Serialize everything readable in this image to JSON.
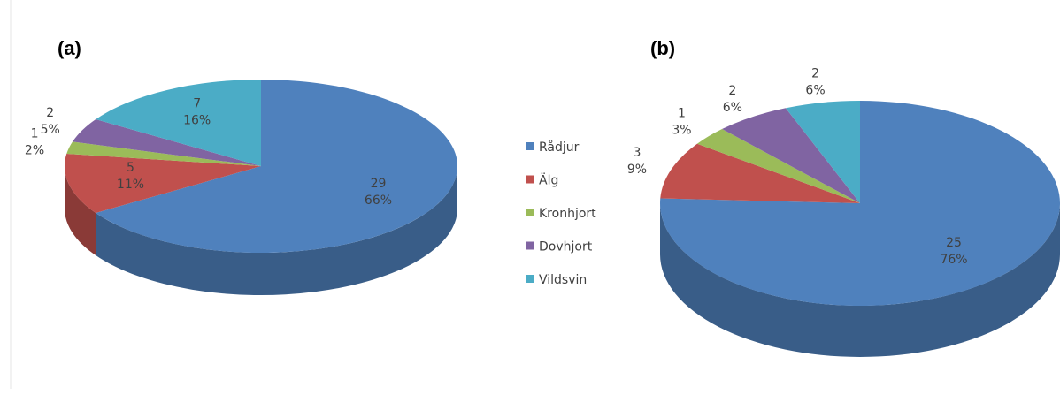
{
  "chart_data": [
    {
      "type": "pie3d",
      "title": "(a)",
      "categories": [
        "Rådjur",
        "Älg",
        "Kronhjort",
        "Dovhjort",
        "Vildsvin"
      ],
      "values": [
        29,
        5,
        1,
        2,
        7
      ],
      "percent_labels": [
        "66%",
        "11%",
        "2%",
        "5%",
        "16%"
      ],
      "colors": [
        "#4f81bd",
        "#c0504d",
        "#9bbb59",
        "#8064a2",
        "#4bacc6"
      ],
      "legend": "right"
    },
    {
      "type": "pie3d",
      "title": "(b)",
      "values": [
        25,
        3,
        1,
        2,
        2
      ],
      "percent_labels": [
        "76%",
        "9%",
        "3%",
        "6%",
        "6%"
      ],
      "colors": [
        "#4f81bd",
        "#c0504d",
        "#9bbb59",
        "#8064a2",
        "#4bacc6"
      ]
    }
  ]
}
